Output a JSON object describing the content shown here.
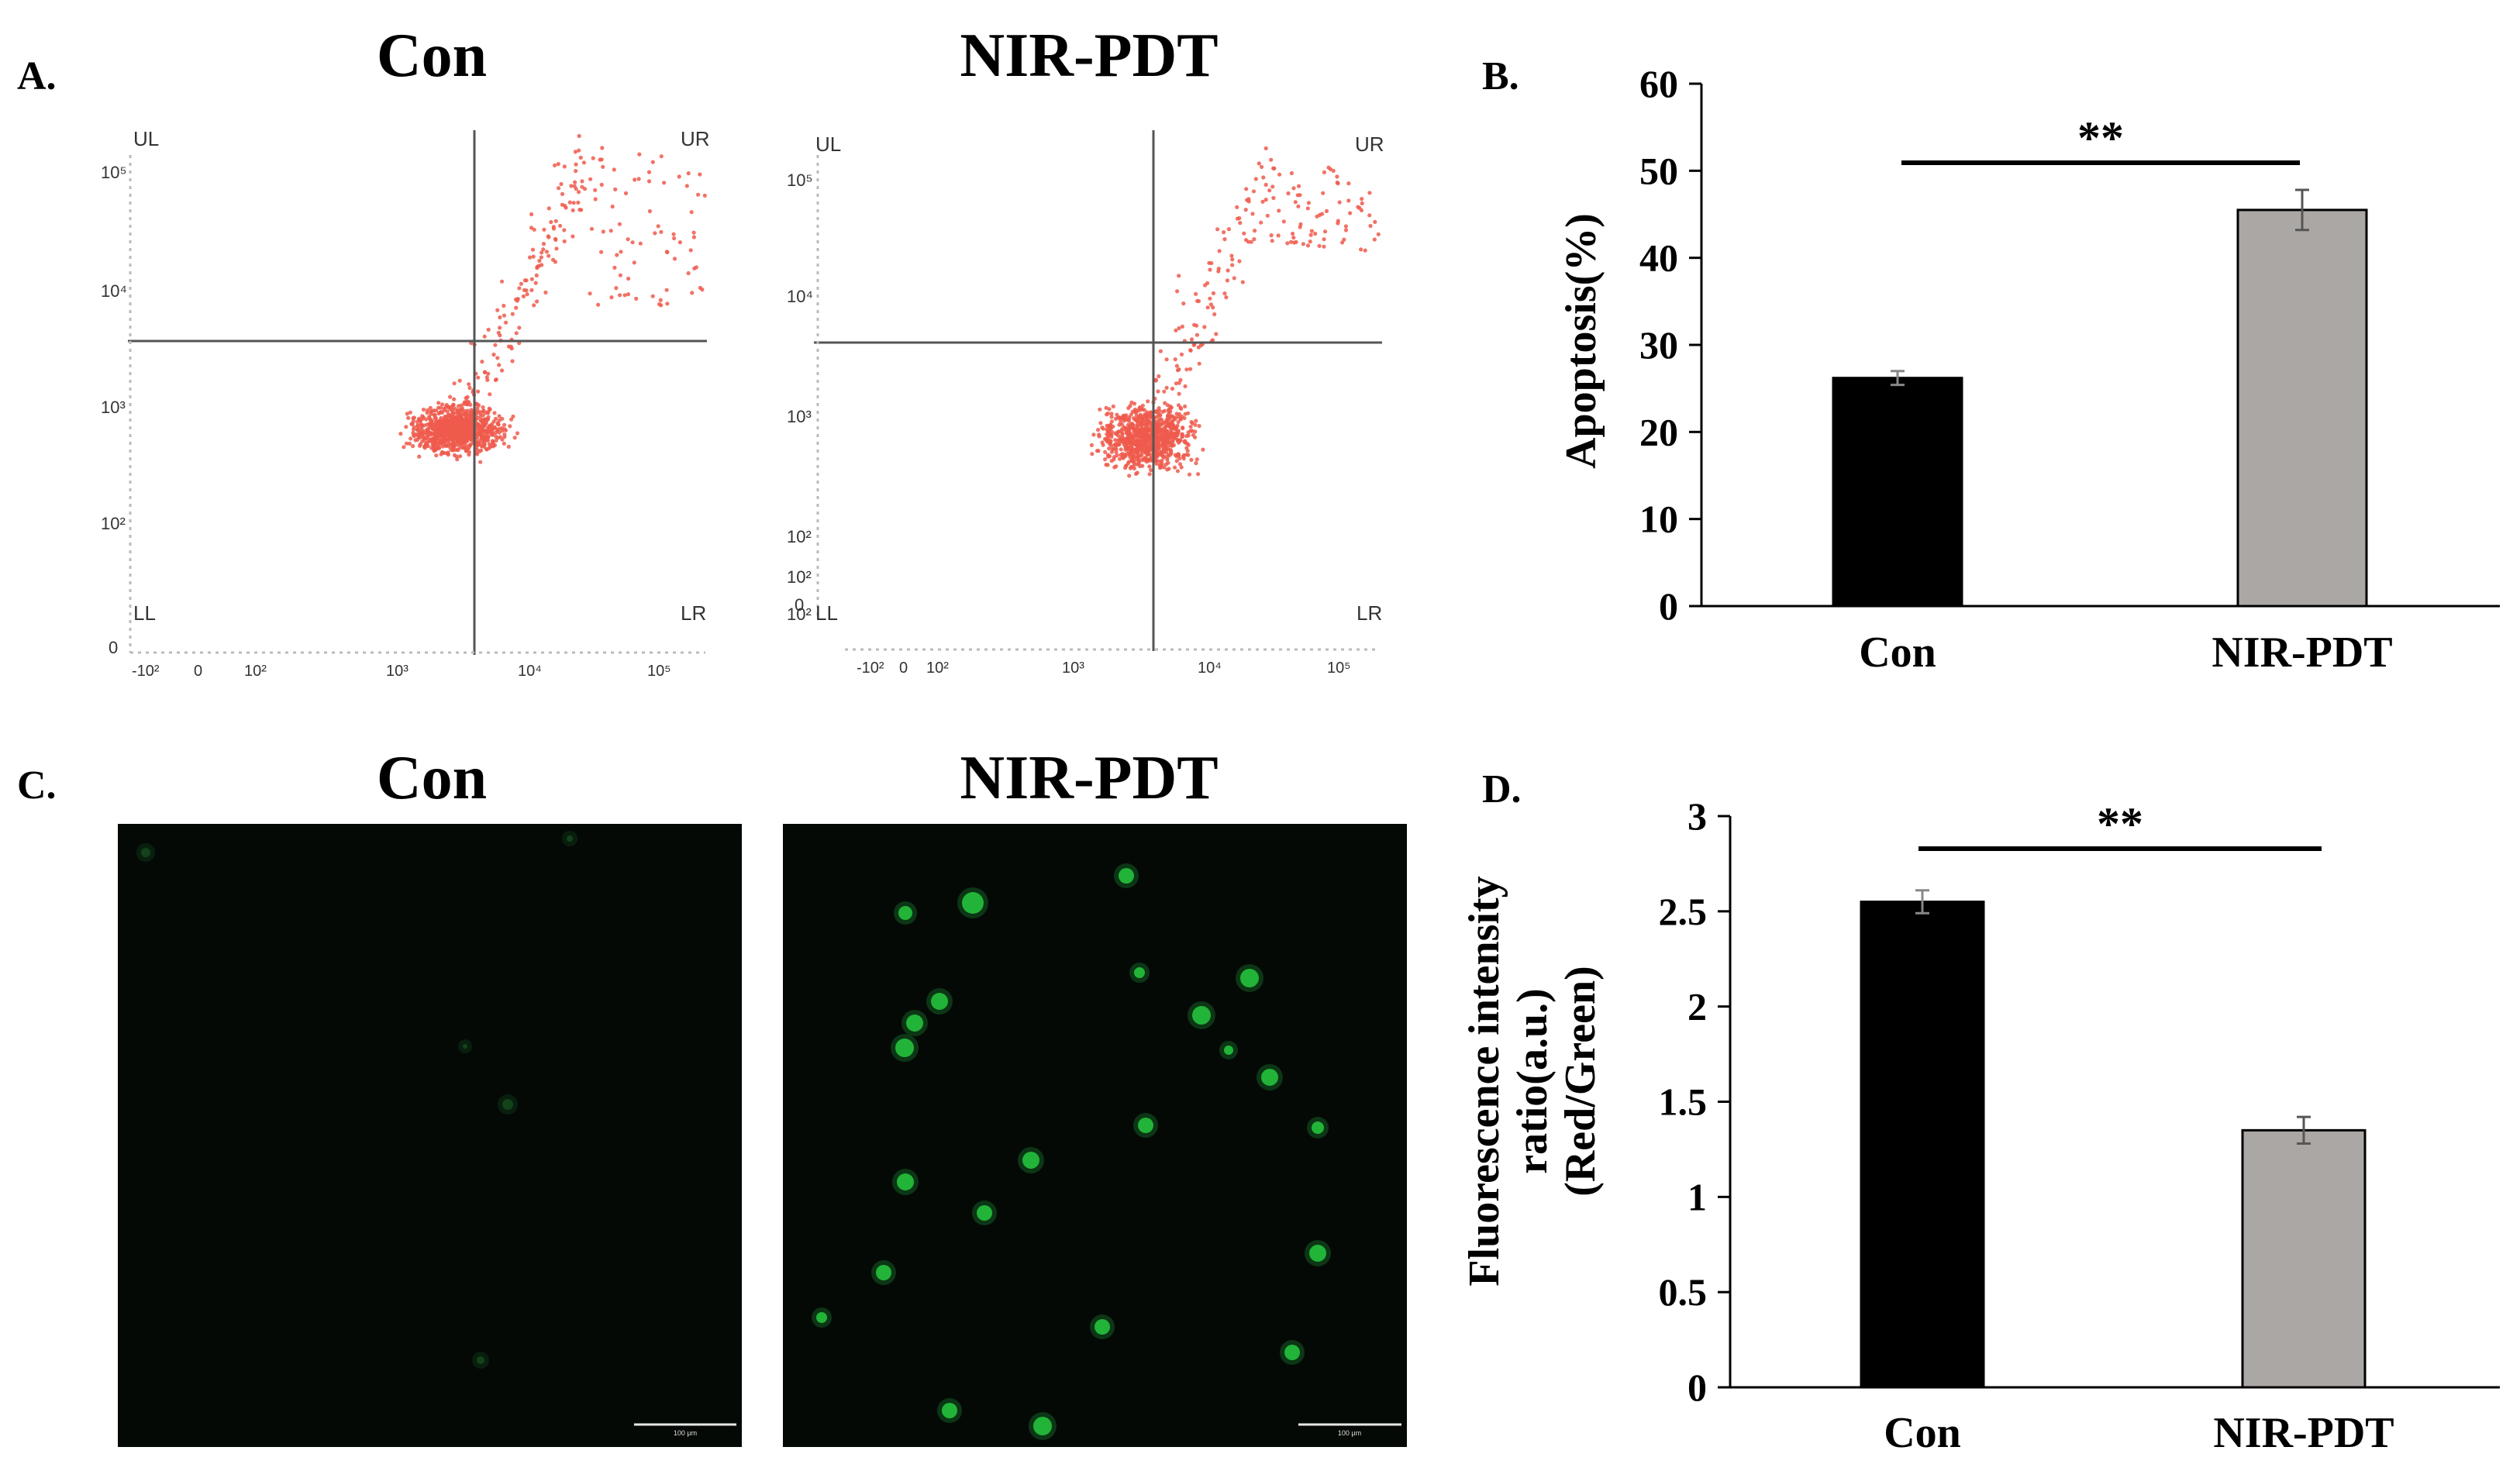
{
  "panels": {
    "A": {
      "label": "A.",
      "plots": [
        {
          "title": "Con",
          "ul": "UL",
          "ur": "UR",
          "ll": "LL",
          "lr": "LR",
          "yticks": [
            "10⁵",
            "10⁴",
            "10³",
            "10²",
            "0"
          ],
          "xticks": [
            "-10²",
            "0",
            "10²",
            "10³",
            "10⁴",
            "10⁵"
          ]
        },
        {
          "title": "NIR-PDT",
          "ul": "UL",
          "ur": "UR",
          "ll": "LL",
          "lr": "LR",
          "yticks": [
            "10⁵",
            "10⁴",
            "10³",
            "10²",
            "10²",
            "0",
            "10²"
          ],
          "xticks": [
            "-10²",
            "0",
            "10²",
            "10³",
            "10⁴",
            "10⁵"
          ]
        }
      ]
    },
    "C": {
      "label": "C.",
      "images": [
        {
          "title": "Con",
          "scale": "100 μm"
        },
        {
          "title": "NIR-PDT",
          "scale": "100 μm"
        }
      ]
    },
    "B": {
      "label": "B."
    },
    "D": {
      "label": "D."
    }
  },
  "chart_data": [
    {
      "panel": "B",
      "type": "bar",
      "categories": [
        "Con",
        "NIR-PDT"
      ],
      "values": [
        26.2,
        45.5
      ],
      "errors": [
        0.8,
        2.3
      ],
      "bar_colors": [
        "#000000",
        "#aba7a4"
      ],
      "ylabel": "Apoptosis(%)",
      "ylim": [
        0,
        60
      ],
      "yticks": [
        0,
        10,
        20,
        30,
        40,
        50,
        60
      ],
      "significance": "**"
    },
    {
      "panel": "D",
      "type": "bar",
      "categories": [
        "Con",
        "NIR-PDT"
      ],
      "values": [
        2.55,
        1.35
      ],
      "errors": [
        0.06,
        0.07
      ],
      "bar_colors": [
        "#000000",
        "#aba7a4"
      ],
      "ylabel_lines": [
        "Fluorescence intensity",
        "ratio(a.u.)",
        "(Red/Green)"
      ],
      "ylim": [
        0,
        3
      ],
      "yticks": [
        "0",
        "0.5",
        "1",
        "1.5",
        "2",
        "2.5",
        "3"
      ],
      "significance": "**"
    }
  ]
}
